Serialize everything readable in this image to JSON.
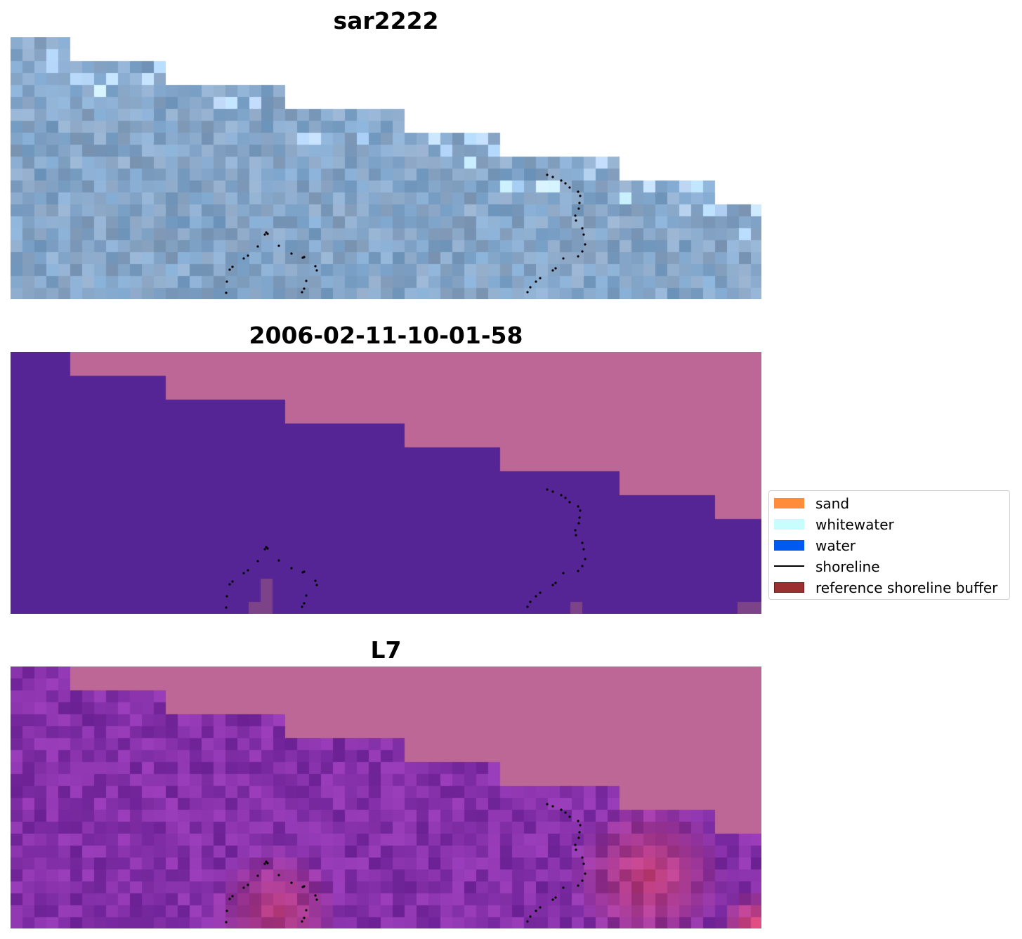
{
  "panels": [
    {
      "title": "sar2222",
      "kind": "rgb"
    },
    {
      "title": "2006-02-11-10-01-58",
      "kind": "classified"
    },
    {
      "title": "L7",
      "kind": "index"
    }
  ],
  "legend": {
    "items": [
      {
        "label": "sand",
        "type": "patch",
        "color": "#ff8c3a"
      },
      {
        "label": "whitewater",
        "type": "patch",
        "color": "#c8fdfd"
      },
      {
        "label": "water",
        "type": "patch",
        "color": "#005af2"
      },
      {
        "label": "shoreline",
        "type": "line",
        "color": "#000000"
      },
      {
        "label": "reference shoreline buffer",
        "type": "patch",
        "color": "#9a3030",
        "edge": "#6a1a1a"
      }
    ]
  },
  "colors": {
    "outside_mask": "#bd6796",
    "water_class": "#552596",
    "rgb_base": "#86a6c8",
    "index_base": "#8430a8"
  }
}
